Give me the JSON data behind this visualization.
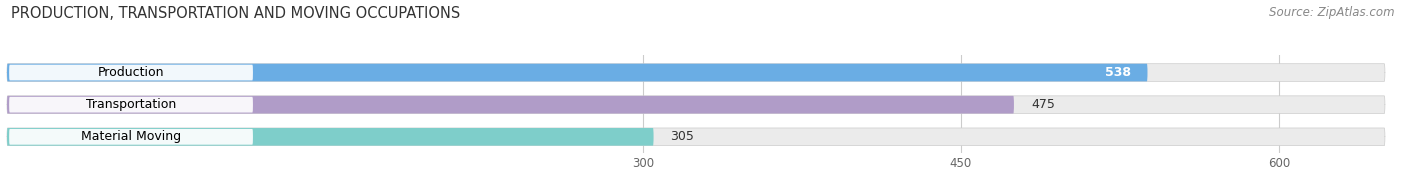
{
  "title": "PRODUCTION, TRANSPORTATION AND MOVING OCCUPATIONS",
  "source": "Source: ZipAtlas.com",
  "categories": [
    "Production",
    "Transportation",
    "Material Moving"
  ],
  "values": [
    538,
    475,
    305
  ],
  "bar_colors": [
    "#6aade4",
    "#b09cc8",
    "#7ececa"
  ],
  "xlim": [
    0,
    650
  ],
  "xmin": 0,
  "xticks": [
    300,
    450,
    600
  ],
  "title_fontsize": 10.5,
  "source_fontsize": 8.5,
  "bar_label_fontsize": 9,
  "cat_label_fontsize": 9,
  "bg_color": "#ffffff",
  "bar_bg_color": "#e8e8e8"
}
